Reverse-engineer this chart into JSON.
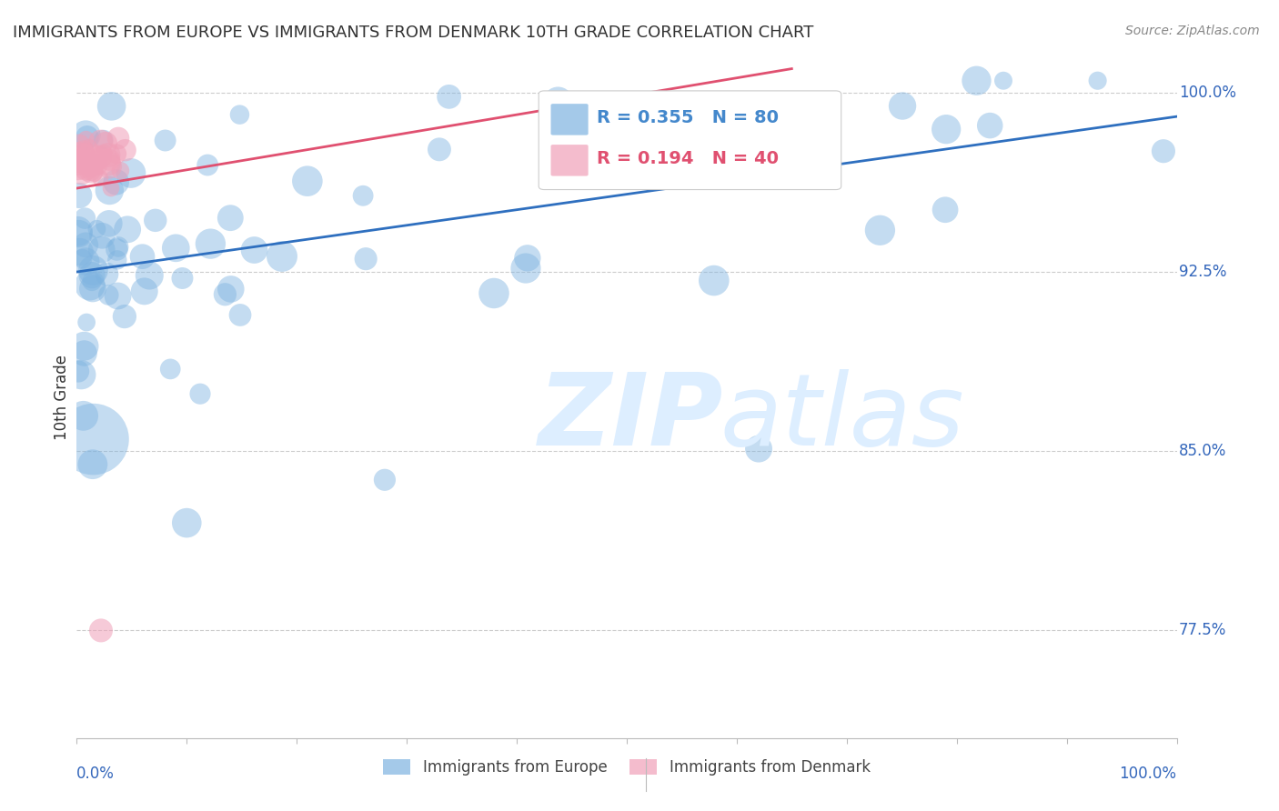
{
  "title": "IMMIGRANTS FROM EUROPE VS IMMIGRANTS FROM DENMARK 10TH GRADE CORRELATION CHART",
  "source": "Source: ZipAtlas.com",
  "ylabel": "10th Grade",
  "ytick_labels": [
    "100.0%",
    "92.5%",
    "85.0%",
    "77.5%"
  ],
  "ytick_values": [
    1.0,
    0.925,
    0.85,
    0.775
  ],
  "blue_R": 0.355,
  "blue_N": 80,
  "pink_R": 0.194,
  "pink_N": 40,
  "blue_color": "#7EB3E0",
  "pink_color": "#F0A0B8",
  "blue_line_color": "#2E6FBF",
  "pink_line_color": "#E05070",
  "legend_blue_text_color": "#4488CC",
  "legend_pink_text_color": "#E05070",
  "axis_label_color": "#3366BB",
  "grid_color": "#CCCCCC",
  "title_color": "#333333",
  "watermark_color": "#DDEEFF",
  "xlim": [
    0.0,
    1.0
  ],
  "ylim": [
    0.73,
    1.015
  ],
  "blue_line_x": [
    0.0,
    1.0
  ],
  "blue_line_y": [
    0.925,
    0.99
  ],
  "pink_line_x": [
    0.0,
    0.65
  ],
  "pink_line_y": [
    0.96,
    1.01
  ]
}
